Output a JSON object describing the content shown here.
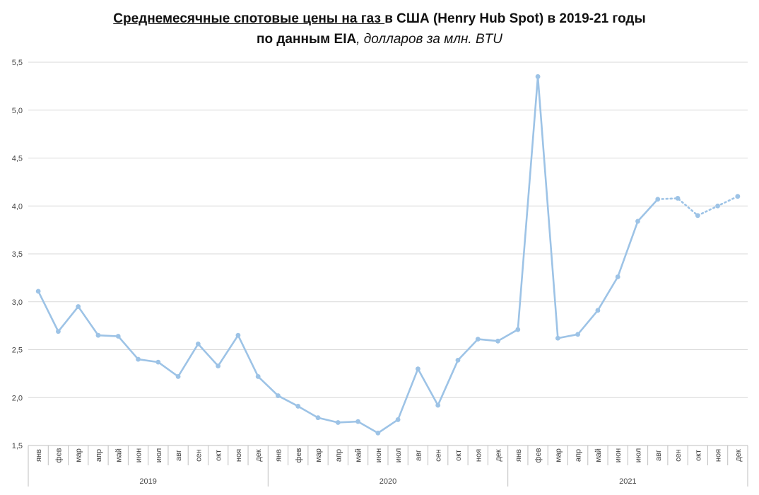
{
  "title": {
    "line1_underlined": "Среднемесячные спотовые цены на газ ",
    "line1_rest": "в США (Henry Hub Spot) в 2019-21 годы",
    "line2_bold": "по данным EIA",
    "line2_italic": ", долларов за млн. BTU"
  },
  "colors": {
    "line": "#9dc3e6",
    "grid": "#d9d9d9",
    "axis": "#bfbfbf"
  },
  "chart_data": {
    "type": "line",
    "title": "Среднемесячные спотовые цены на газ в США (Henry Hub Spot) в 2019-21 годы по данным EIA, долларов за млн. BTU",
    "categories": [
      "янв",
      "фев",
      "мар",
      "апр",
      "май",
      "июн",
      "июл",
      "авг",
      "сен",
      "окт",
      "ноя",
      "дек",
      "янв",
      "фев",
      "мар",
      "апр",
      "май",
      "июн",
      "июл",
      "авг",
      "сен",
      "окт",
      "ноя",
      "дек",
      "янв",
      "фев",
      "мар",
      "апр",
      "май",
      "июн",
      "июл",
      "авг",
      "сен",
      "окт",
      "ноя",
      "дек"
    ],
    "groups": [
      {
        "label": "2019",
        "start": 0,
        "end": 11
      },
      {
        "label": "2020",
        "start": 12,
        "end": 23
      },
      {
        "label": "2021",
        "start": 24,
        "end": 35
      }
    ],
    "values": [
      3.11,
      2.69,
      2.95,
      2.65,
      2.64,
      2.4,
      2.37,
      2.22,
      2.56,
      2.33,
      2.65,
      2.22,
      2.02,
      1.91,
      1.79,
      1.74,
      1.75,
      1.63,
      1.77,
      2.3,
      1.92,
      2.39,
      2.61,
      2.59,
      2.71,
      5.35,
      2.62,
      2.66,
      2.91,
      3.26,
      3.84,
      4.07,
      4.08,
      3.9,
      4.0,
      4.1
    ],
    "dotted_from_index": 31,
    "ylim": [
      1.5,
      5.5
    ],
    "yticks": [
      "1,5",
      "2,0",
      "2,5",
      "3,0",
      "3,5",
      "4,0",
      "4,5",
      "5,0",
      "5,5"
    ],
    "grid": true,
    "legend": "none",
    "xlabel": "",
    "ylabel": ""
  }
}
